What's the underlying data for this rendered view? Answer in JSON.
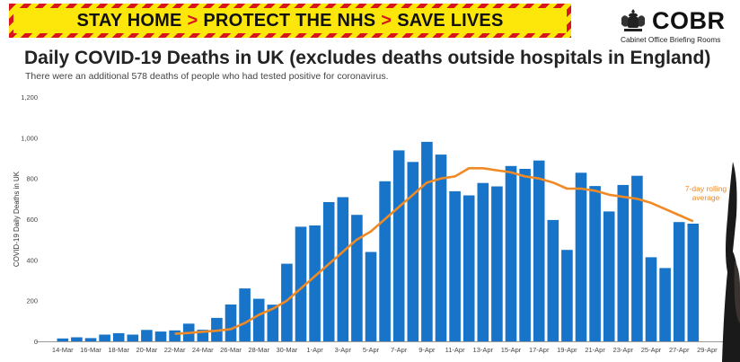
{
  "banner": {
    "part1": "STAY HOME",
    "part2": "PROTECT THE NHS",
    "part3": "SAVE LIVES",
    "separator": ">"
  },
  "logo": {
    "name": "COBR",
    "subtitle": "Cabinet Office Briefing Rooms",
    "icon": "royal-crest-icon"
  },
  "header": {
    "title": "Daily COVID-19 Deaths in UK (excludes deaths outside hospitals in England)",
    "subtitle": "There were an additional 578 deaths of people who had tested positive for coronavirus."
  },
  "chart_data": {
    "type": "bar",
    "ylabel": "COVID-19 Daily Deaths in UK",
    "xlabel": "",
    "ylim": [
      0,
      1200
    ],
    "yticks": [
      "0",
      "200",
      "400",
      "600",
      "800",
      "1,000",
      "1,200"
    ],
    "grid": false,
    "bar_color": "#1874c8",
    "line_color": "#f08a24",
    "categories": [
      "14-Mar",
      "15-Mar",
      "16-Mar",
      "17-Mar",
      "18-Mar",
      "19-Mar",
      "20-Mar",
      "21-Mar",
      "22-Mar",
      "23-Mar",
      "24-Mar",
      "25-Mar",
      "26-Mar",
      "27-Mar",
      "28-Mar",
      "29-Mar",
      "30-Mar",
      "31-Mar",
      "1-Apr",
      "2-Apr",
      "3-Apr",
      "4-Apr",
      "5-Apr",
      "6-Apr",
      "7-Apr",
      "8-Apr",
      "9-Apr",
      "10-Apr",
      "11-Apr",
      "12-Apr",
      "13-Apr",
      "14-Apr",
      "15-Apr",
      "16-Apr",
      "17-Apr",
      "18-Apr",
      "19-Apr",
      "20-Apr",
      "21-Apr",
      "22-Apr",
      "23-Apr",
      "24-Apr",
      "25-Apr",
      "26-Apr",
      "27-Apr",
      "28-Apr",
      "29-Apr",
      "30-Apr"
    ],
    "tick_labels": [
      "14-Mar",
      "16-Mar",
      "18-Mar",
      "20-Mar",
      "22-Mar",
      "24-Mar",
      "26-Mar",
      "28-Mar",
      "30-Mar",
      "1-Apr",
      "3-Apr",
      "5-Apr",
      "7-Apr",
      "9-Apr",
      "11-Apr",
      "13-Apr",
      "15-Apr",
      "17-Apr",
      "19-Apr",
      "21-Apr",
      "23-Apr",
      "25-Apr",
      "27-Apr",
      "29-Apr"
    ],
    "series": [
      {
        "type": "bar",
        "values": [
          14,
          20,
          16,
          33,
          40,
          33,
          56,
          48,
          54,
          87,
          57,
          115,
          181,
          260,
          209,
          180,
          381,
          563,
          569,
          684,
          708,
          621,
          439,
          786,
          938,
          881,
          980,
          917,
          737,
          717,
          778,
          761,
          861,
          847,
          888,
          596,
          449,
          828,
          763,
          638,
          768,
          813,
          413,
          360,
          586,
          578,
          null,
          null
        ]
      },
      {
        "type": "line",
        "name": "7-day rolling average",
        "values": [
          null,
          null,
          null,
          null,
          null,
          null,
          null,
          null,
          37,
          41,
          47,
          52,
          60,
          90,
          130,
          160,
          200,
          260,
          320,
          380,
          440,
          500,
          540,
          600,
          660,
          720,
          780,
          800,
          810,
          850,
          850,
          840,
          830,
          810,
          800,
          780,
          750,
          750,
          740,
          720,
          710,
          700,
          680,
          650,
          620,
          590,
          null,
          null
        ]
      }
    ],
    "annotation": "7-day rolling average"
  }
}
